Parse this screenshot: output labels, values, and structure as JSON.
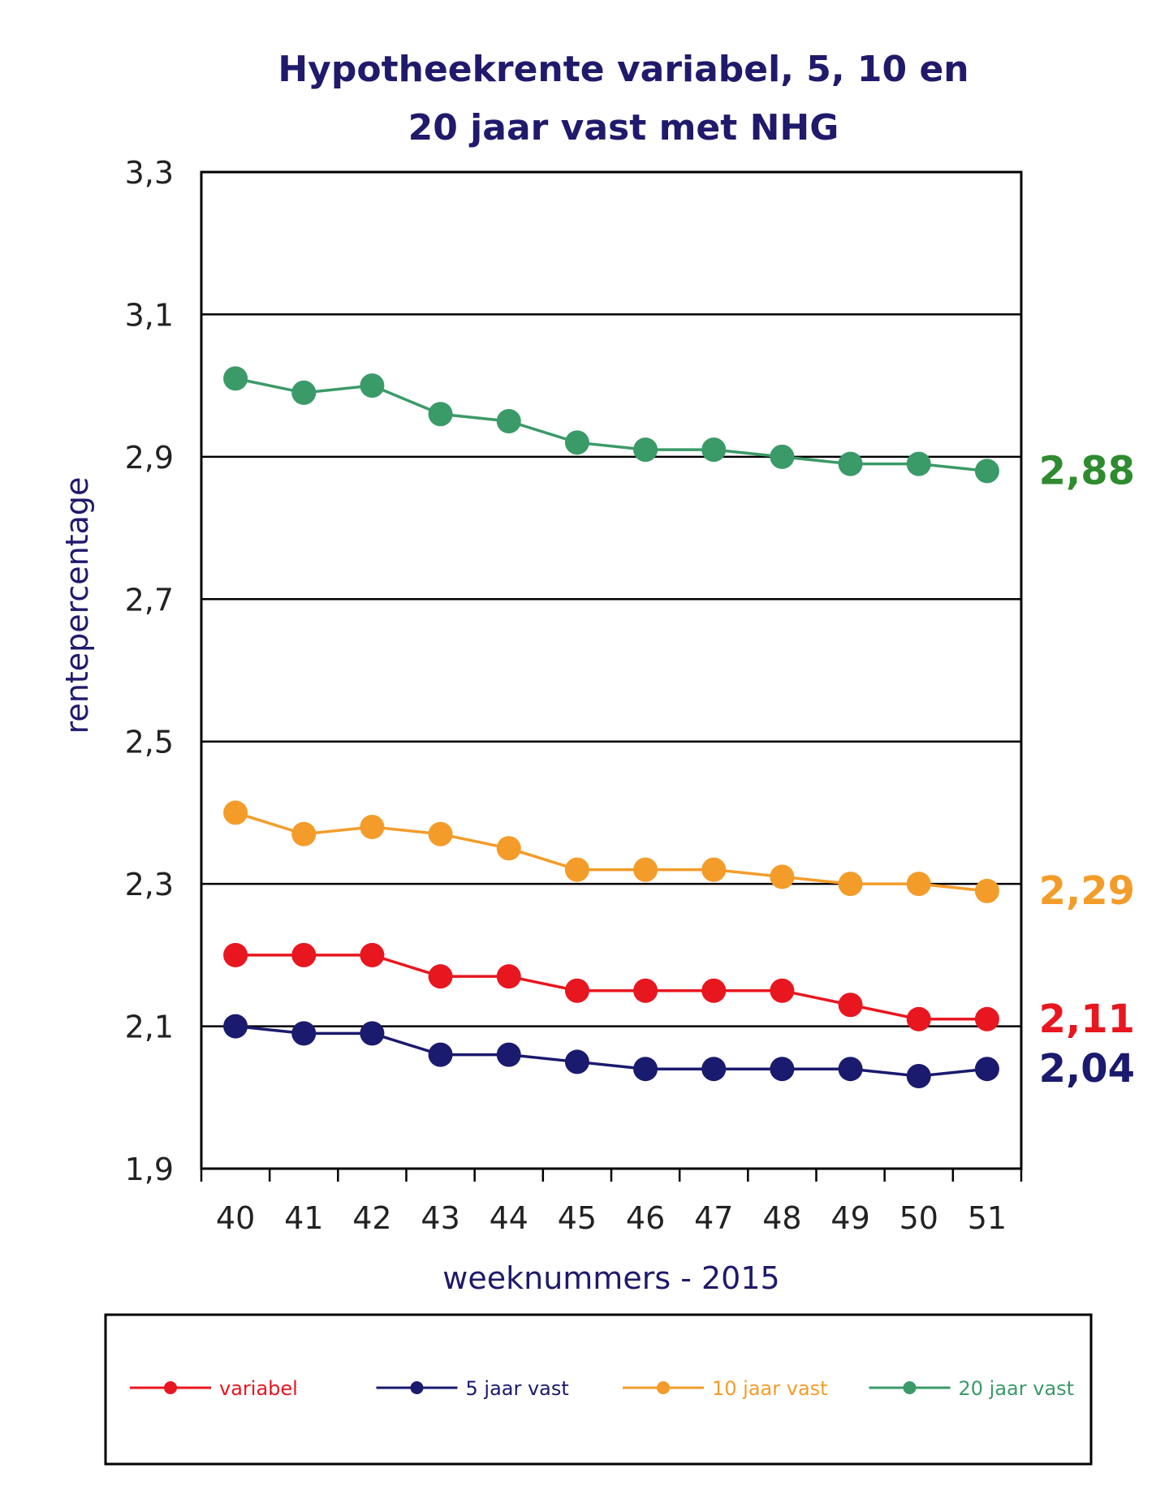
{
  "chart_data": {
    "type": "line",
    "title": [
      "Hypotheekrente variabel, 5, 10 en",
      "20 jaar vast met NHG"
    ],
    "xlabel": "weeknummers - 2015",
    "ylabel": "rentepercentage",
    "categories": [
      "40",
      "41",
      "42",
      "43",
      "44",
      "45",
      "46",
      "47",
      "48",
      "49",
      "50",
      "51"
    ],
    "ylim": [
      1.9,
      3.3
    ],
    "yticks": [
      1.9,
      2.1,
      2.3,
      2.5,
      2.7,
      2.9,
      3.1,
      3.3
    ],
    "ytick_labels": [
      "1,9",
      "2,1",
      "2,3",
      "2,5",
      "2,7",
      "2,9",
      "3,1",
      "3,3"
    ],
    "grid": true,
    "legend_position": "bottom",
    "series": [
      {
        "name": "variabel",
        "color": "#e8161f",
        "values": [
          2.2,
          2.2,
          2.2,
          2.17,
          2.17,
          2.15,
          2.15,
          2.15,
          2.15,
          2.13,
          2.11,
          2.11
        ],
        "end_label": "2,11"
      },
      {
        "name": "5 jaar vast",
        "color": "#1a1a6e",
        "values": [
          2.1,
          2.09,
          2.09,
          2.06,
          2.06,
          2.05,
          2.04,
          2.04,
          2.04,
          2.04,
          2.03,
          2.04
        ],
        "end_label": "2,04"
      },
      {
        "name": "10 jaar vast",
        "color": "#f39c2a",
        "values": [
          2.4,
          2.37,
          2.38,
          2.37,
          2.35,
          2.32,
          2.32,
          2.32,
          2.31,
          2.3,
          2.3,
          2.29
        ],
        "end_label": "2,29"
      },
      {
        "name": "20 jaar vast",
        "color": "#3a9a68",
        "values": [
          3.01,
          2.99,
          3.0,
          2.96,
          2.95,
          2.92,
          2.91,
          2.91,
          2.9,
          2.89,
          2.89,
          2.88
        ],
        "end_label": "2,88"
      }
    ],
    "end_label_colors": {
      "variabel": "#e8161f",
      "5 jaar vast": "#1a1a6e",
      "10 jaar vast": "#f39c2a",
      "20 jaar vast": "#2e8b2e"
    }
  }
}
